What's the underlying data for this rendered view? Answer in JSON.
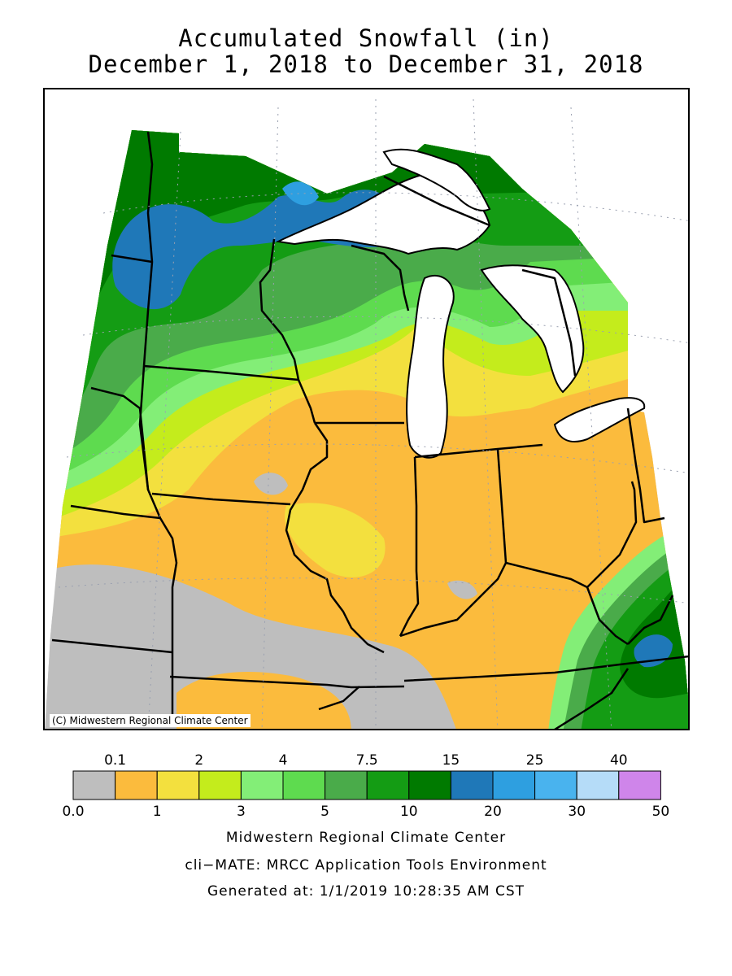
{
  "title": {
    "line1": "Accumulated Snowfall (in)",
    "line2": "December 1, 2018 to December 31, 2018"
  },
  "map": {
    "credit": "(C) Midwestern Regional Climate Center",
    "colors": {
      "land_gray": "#bebebe",
      "orange": "#fbbb3d",
      "yellow": "#f3e03e",
      "lime": "#c4ec1c",
      "light_green": "#83ee77",
      "mid_green": "#5edb4f",
      "green": "#4aab4a",
      "bright_green": "#149c14",
      "dark_green": "#007a00",
      "blue": "#1f78b8",
      "light_blue": "#2e9fe0",
      "water": "#ffffff"
    }
  },
  "legend": {
    "top_labels": [
      "0.1",
      "2",
      "4",
      "7.5",
      "15",
      "25",
      "40"
    ],
    "bottom_labels": [
      "0.0",
      "1",
      "3",
      "5",
      "10",
      "20",
      "30",
      "50"
    ],
    "colors": [
      "#bebebe",
      "#fbbb3d",
      "#f3e03e",
      "#c4ec1c",
      "#83ee77",
      "#5edb4f",
      "#4aab4a",
      "#149c14",
      "#007a00",
      "#1f78b8",
      "#2e9fe0",
      "#49b3ee",
      "#b5dcf8",
      "#cf85ea"
    ]
  },
  "footer": {
    "line1": "Midwestern Regional Climate Center",
    "line2": "cli−MATE: MRCC Application Tools Environment",
    "line3": "Generated at: 1/1/2019 10:28:35 AM CST"
  }
}
